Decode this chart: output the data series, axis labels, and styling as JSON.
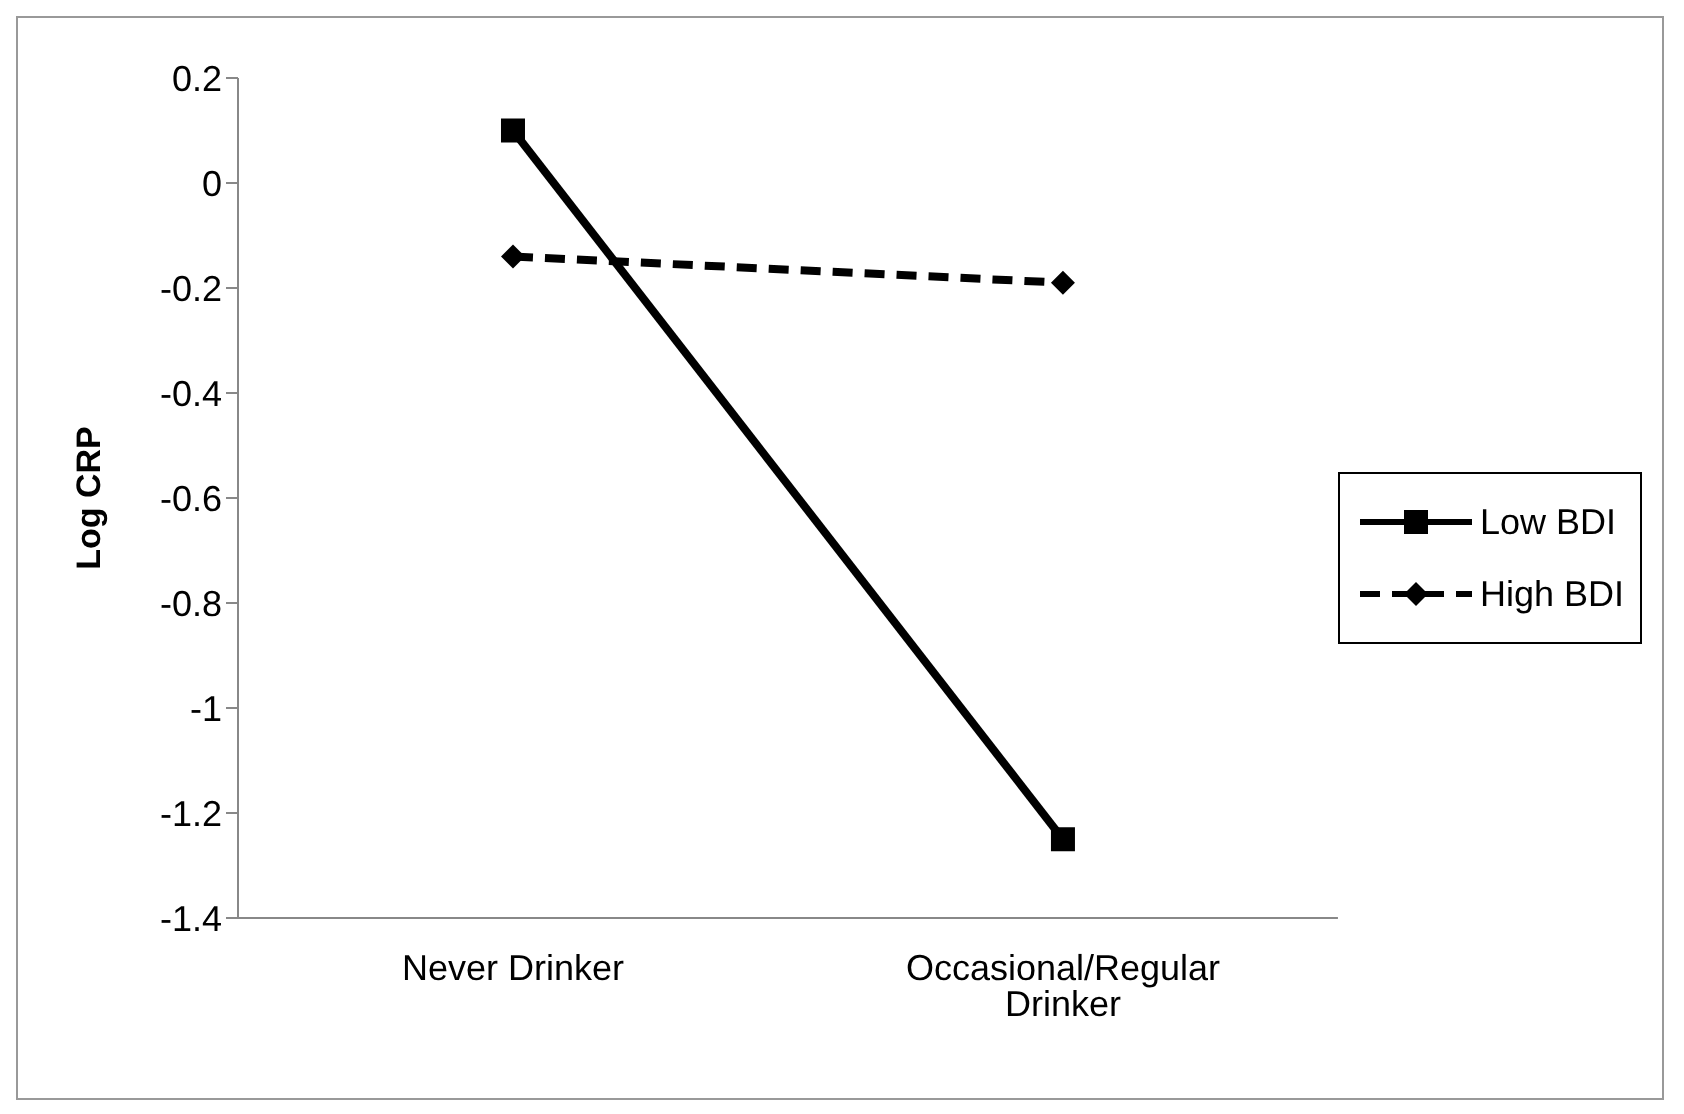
{
  "chart_data": {
    "type": "line",
    "ylabel": "Log CRP",
    "categories": [
      "Never Drinker",
      "Occasional/Regular Drinker"
    ],
    "series": [
      {
        "name": "Low BDI",
        "color": "#000000",
        "values": [
          0.1,
          -1.25
        ],
        "marker": "square",
        "line_style": "solid"
      },
      {
        "name": "High BDI",
        "color": "#000000",
        "values": [
          -0.14,
          -0.19
        ],
        "marker": "diamond",
        "line_style": "dashed"
      }
    ],
    "ylim": [
      -1.4,
      0.2
    ],
    "yticks": [
      0.2,
      0,
      -0.2,
      -0.4,
      -0.6,
      -0.8,
      -1,
      -1.2,
      -1.4
    ],
    "grid": false,
    "legend": "right"
  }
}
